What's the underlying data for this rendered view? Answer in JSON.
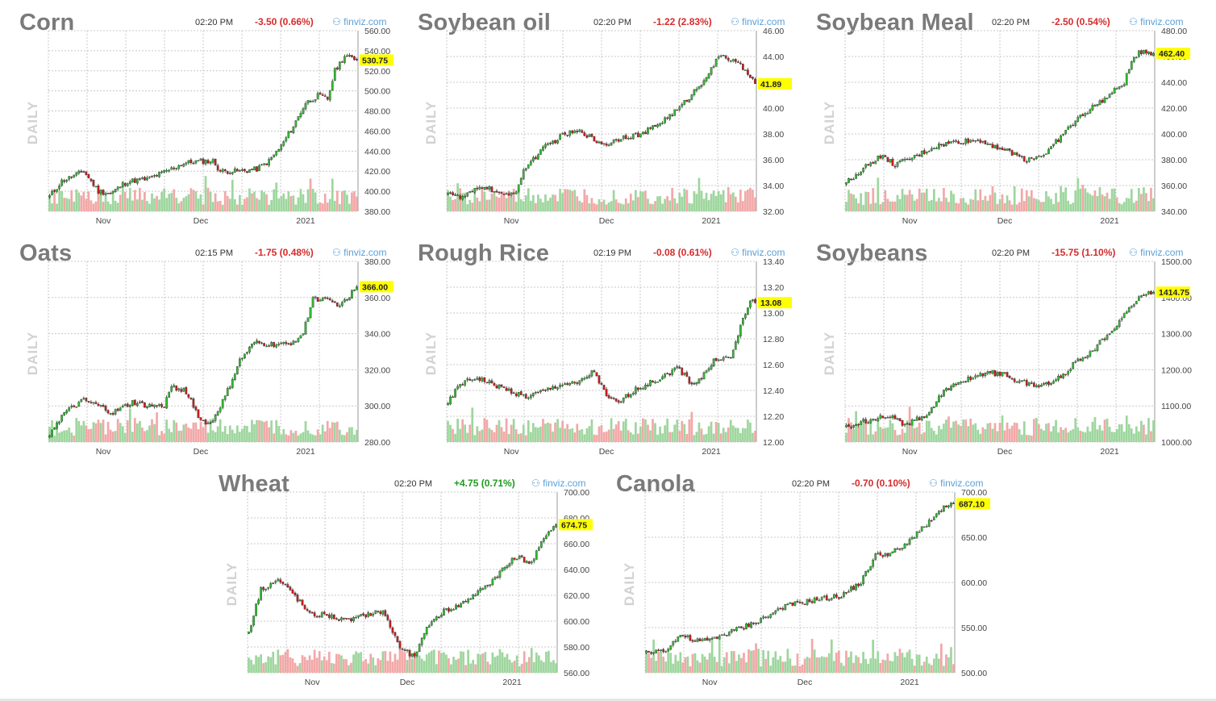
{
  "source_label": "finviz.com",
  "period_label": "DAILY",
  "colors": {
    "up": "#2fbf2f",
    "down": "#d11a1a",
    "vol_up": "#9ed69e",
    "vol_down": "#f2a8a8",
    "highlight": "#ffff00",
    "grid": "#c8c8c8",
    "change_down": "#d62b2b",
    "change_up": "#1f9a1f"
  },
  "chart_data": [
    {
      "type": "candlestick",
      "title": "Corn",
      "time": "02:20 PM",
      "change": "-3.50 (0.66%)",
      "direction": "down",
      "last_label": "530.75",
      "last": 530.75,
      "y_ticks": [
        "560.00",
        "540.00",
        "520.00",
        "500.00",
        "480.00",
        "460.00",
        "440.00",
        "420.00",
        "400.00",
        "380.00"
      ],
      "ylim": [
        380,
        560
      ],
      "x_ticks": [
        "Nov",
        "Dec",
        "2021"
      ],
      "x_tick_pos": [
        22,
        62,
        105
      ],
      "n": 127,
      "keys": [
        [
          0,
          395
        ],
        [
          5,
          410
        ],
        [
          14,
          420
        ],
        [
          20,
          400
        ],
        [
          25,
          398
        ],
        [
          32,
          410
        ],
        [
          40,
          412
        ],
        [
          48,
          420
        ],
        [
          55,
          428
        ],
        [
          62,
          430
        ],
        [
          67,
          430
        ],
        [
          70,
          420
        ],
        [
          78,
          420
        ],
        [
          85,
          422
        ],
        [
          90,
          430
        ],
        [
          95,
          445
        ],
        [
          100,
          465
        ],
        [
          105,
          488
        ],
        [
          110,
          495
        ],
        [
          114,
          492
        ],
        [
          117,
          520
        ],
        [
          121,
          535
        ],
        [
          126,
          531
        ]
      ]
    },
    {
      "type": "candlestick",
      "title": "Soybean oil",
      "time": "02:20 PM",
      "change": "-1.22 (2.83%)",
      "direction": "down",
      "last_label": "41.89",
      "last": 41.89,
      "y_ticks": [
        "46.00",
        "44.00",
        "42.00",
        "40.00",
        "38.00",
        "36.00",
        "34.00",
        "32.00"
      ],
      "ylim": [
        32,
        46
      ],
      "x_ticks": [
        "Nov",
        "Dec",
        "2021"
      ],
      "x_tick_pos": [
        26,
        65,
        108
      ],
      "n": 127,
      "keys": [
        [
          0,
          33.6
        ],
        [
          5,
          33.0
        ],
        [
          10,
          33.5
        ],
        [
          15,
          34.0
        ],
        [
          22,
          33.2
        ],
        [
          28,
          33.6
        ],
        [
          32,
          35.5
        ],
        [
          40,
          37.0
        ],
        [
          48,
          38.0
        ],
        [
          55,
          38.2
        ],
        [
          60,
          37.5
        ],
        [
          65,
          37.2
        ],
        [
          72,
          37.8
        ],
        [
          80,
          38.0
        ],
        [
          88,
          39.0
        ],
        [
          95,
          40.0
        ],
        [
          102,
          41.5
        ],
        [
          108,
          43.0
        ],
        [
          112,
          44.2
        ],
        [
          118,
          43.5
        ],
        [
          123,
          42.8
        ],
        [
          126,
          41.9
        ]
      ]
    },
    {
      "type": "candlestick",
      "title": "Soybean Meal",
      "time": "02:20 PM",
      "change": "-2.50 (0.54%)",
      "direction": "down",
      "last_label": "462.40",
      "last": 462.4,
      "y_ticks": [
        "480.00",
        "460.00",
        "440.00",
        "420.00",
        "400.00",
        "380.00",
        "360.00",
        "340.00"
      ],
      "ylim": [
        340,
        480
      ],
      "x_ticks": [
        "Nov",
        "Dec",
        "2021"
      ],
      "x_tick_pos": [
        26,
        65,
        108
      ],
      "n": 127,
      "keys": [
        [
          0,
          362
        ],
        [
          6,
          372
        ],
        [
          14,
          383
        ],
        [
          20,
          376
        ],
        [
          28,
          382
        ],
        [
          36,
          390
        ],
        [
          45,
          394
        ],
        [
          55,
          395
        ],
        [
          62,
          390
        ],
        [
          68,
          385
        ],
        [
          74,
          380
        ],
        [
          82,
          385
        ],
        [
          88,
          398
        ],
        [
          95,
          412
        ],
        [
          102,
          422
        ],
        [
          108,
          430
        ],
        [
          114,
          440
        ],
        [
          118,
          460
        ],
        [
          122,
          465
        ],
        [
          126,
          462
        ]
      ]
    },
    {
      "type": "candlestick",
      "title": "Oats",
      "time": "02:15 PM",
      "change": "-1.75 (0.48%)",
      "direction": "down",
      "last_label": "366.00",
      "last": 366,
      "y_ticks": [
        "380.00",
        "360.00",
        "340.00",
        "320.00",
        "300.00",
        "280.00"
      ],
      "ylim": [
        280,
        380
      ],
      "x_ticks": [
        "Nov",
        "Dec",
        "2021"
      ],
      "x_tick_pos": [
        22,
        62,
        105
      ],
      "n": 127,
      "keys": [
        [
          0,
          285
        ],
        [
          6,
          296
        ],
        [
          14,
          303
        ],
        [
          20,
          300
        ],
        [
          26,
          296
        ],
        [
          34,
          302
        ],
        [
          40,
          300
        ],
        [
          47,
          300
        ],
        [
          50,
          311
        ],
        [
          56,
          308
        ],
        [
          62,
          292
        ],
        [
          66,
          290
        ],
        [
          72,
          305
        ],
        [
          78,
          325
        ],
        [
          84,
          335
        ],
        [
          90,
          334
        ],
        [
          98,
          334
        ],
        [
          104,
          340
        ],
        [
          108,
          360
        ],
        [
          114,
          358
        ],
        [
          120,
          356
        ],
        [
          126,
          366
        ]
      ]
    },
    {
      "type": "candlestick",
      "title": "Rough Rice",
      "time": "02:19 PM",
      "change": "-0.08 (0.61%)",
      "direction": "down",
      "last_label": "13.08",
      "last": 13.08,
      "y_ticks": [
        "13.40",
        "13.20",
        "13.00",
        "12.80",
        "12.60",
        "12.40",
        "12.20",
        "12.00"
      ],
      "ylim": [
        12,
        13.4
      ],
      "x_ticks": [
        "Nov",
        "Dec",
        "2021"
      ],
      "x_tick_pos": [
        26,
        65,
        108
      ],
      "n": 127,
      "keys": [
        [
          0,
          12.3
        ],
        [
          5,
          12.45
        ],
        [
          12,
          12.5
        ],
        [
          18,
          12.45
        ],
        [
          25,
          12.4
        ],
        [
          32,
          12.35
        ],
        [
          40,
          12.4
        ],
        [
          47,
          12.45
        ],
        [
          53,
          12.45
        ],
        [
          60,
          12.55
        ],
        [
          65,
          12.35
        ],
        [
          70,
          12.3
        ],
        [
          76,
          12.4
        ],
        [
          82,
          12.45
        ],
        [
          88,
          12.5
        ],
        [
          94,
          12.58
        ],
        [
          100,
          12.45
        ],
        [
          104,
          12.5
        ],
        [
          110,
          12.65
        ],
        [
          116,
          12.65
        ],
        [
          121,
          12.95
        ],
        [
          124,
          13.1
        ],
        [
          126,
          13.08
        ]
      ]
    },
    {
      "type": "candlestick",
      "title": "Soybeans",
      "time": "02:20 PM",
      "change": "-15.75 (1.10%)",
      "direction": "down",
      "last_label": "1414.75",
      "last": 1414.75,
      "y_ticks": [
        "1500.00",
        "1400.00",
        "1300.00",
        "1200.00",
        "1100.00",
        "1000.00"
      ],
      "ylim": [
        1000,
        1500
      ],
      "x_ticks": [
        "Nov",
        "Dec",
        "2021"
      ],
      "x_tick_pos": [
        26,
        65,
        108
      ],
      "n": 127,
      "keys": [
        [
          0,
          1040
        ],
        [
          8,
          1060
        ],
        [
          16,
          1075
        ],
        [
          24,
          1050
        ],
        [
          32,
          1070
        ],
        [
          40,
          1140
        ],
        [
          48,
          1170
        ],
        [
          56,
          1190
        ],
        [
          64,
          1190
        ],
        [
          70,
          1170
        ],
        [
          78,
          1155
        ],
        [
          86,
          1170
        ],
        [
          94,
          1220
        ],
        [
          102,
          1260
        ],
        [
          110,
          1320
        ],
        [
          116,
          1370
        ],
        [
          122,
          1410
        ],
        [
          126,
          1415
        ]
      ]
    },
    {
      "type": "candlestick",
      "title": "Wheat",
      "time": "02:20 PM",
      "change": "+4.75 (0.71%)",
      "direction": "up",
      "last_label": "674.75",
      "last": 674.75,
      "y_ticks": [
        "700.00",
        "680.00",
        "660.00",
        "640.00",
        "620.00",
        "600.00",
        "580.00",
        "560.00"
      ],
      "ylim": [
        560,
        700
      ],
      "x_ticks": [
        "Nov",
        "Dec",
        "2021"
      ],
      "x_tick_pos": [
        26,
        65,
        108
      ],
      "n": 127,
      "keys": [
        [
          0,
          592
        ],
        [
          5,
          625
        ],
        [
          12,
          632
        ],
        [
          18,
          622
        ],
        [
          25,
          605
        ],
        [
          32,
          605
        ],
        [
          40,
          600
        ],
        [
          48,
          605
        ],
        [
          55,
          608
        ],
        [
          62,
          580
        ],
        [
          68,
          572
        ],
        [
          74,
          598
        ],
        [
          80,
          608
        ],
        [
          86,
          612
        ],
        [
          92,
          620
        ],
        [
          98,
          628
        ],
        [
          104,
          640
        ],
        [
          110,
          650
        ],
        [
          116,
          645
        ],
        [
          122,
          668
        ],
        [
          126,
          675
        ]
      ]
    },
    {
      "type": "candlestick",
      "title": "Canola",
      "time": "02:20 PM",
      "change": "-0.70 (0.10%)",
      "direction": "down",
      "last_label": "687.10",
      "last": 687.1,
      "y_ticks": [
        "700.00",
        "650.00",
        "600.00",
        "550.00",
        "500.00"
      ],
      "ylim": [
        500,
        700
      ],
      "x_ticks": [
        "Nov",
        "Dec",
        "2021"
      ],
      "x_tick_pos": [
        26,
        65,
        108
      ],
      "n": 127,
      "keys": [
        [
          0,
          522
        ],
        [
          8,
          526
        ],
        [
          14,
          542
        ],
        [
          20,
          535
        ],
        [
          26,
          536
        ],
        [
          34,
          545
        ],
        [
          42,
          553
        ],
        [
          50,
          563
        ],
        [
          56,
          573
        ],
        [
          64,
          578
        ],
        [
          72,
          582
        ],
        [
          80,
          585
        ],
        [
          88,
          600
        ],
        [
          94,
          630
        ],
        [
          100,
          632
        ],
        [
          106,
          640
        ],
        [
          112,
          658
        ],
        [
          118,
          672
        ],
        [
          122,
          682
        ],
        [
          126,
          687
        ]
      ]
    }
  ]
}
